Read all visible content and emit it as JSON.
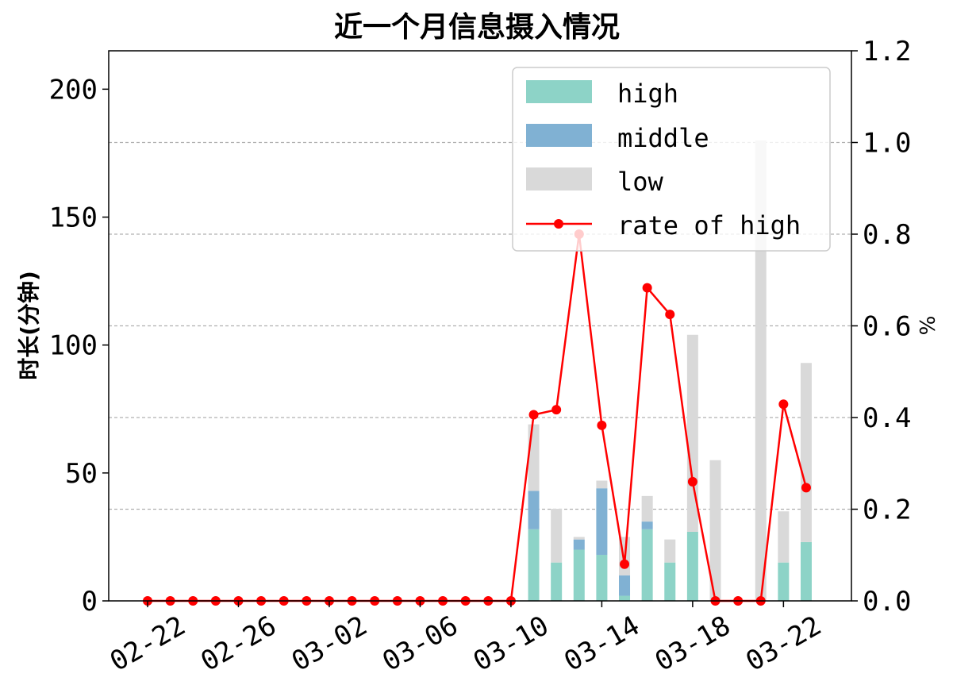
{
  "chart_data": {
    "type": "bar",
    "title": "近一个月信息摄入情况",
    "ylabel": "时长(分钟)",
    "ylabel_right": "%",
    "ylim": [
      0,
      215
    ],
    "ylim_right": [
      0,
      1.2
    ],
    "yticks": [
      0,
      50,
      100,
      150,
      200
    ],
    "yticks_right": [
      "0.0",
      "0.2",
      "0.4",
      "0.6",
      "0.8",
      "1.0",
      "1.2"
    ],
    "grid": "horizontal dashed at right-axis ticks",
    "legend_position": "top-right",
    "stacked": true,
    "categories": [
      "02-22",
      "02-23",
      "02-24",
      "02-25",
      "02-26",
      "02-27",
      "02-28",
      "03-01",
      "03-02",
      "03-03",
      "03-04",
      "03-05",
      "03-06",
      "03-07",
      "03-08",
      "03-09",
      "03-10",
      "03-11",
      "03-12",
      "03-13",
      "03-14",
      "03-15",
      "03-16",
      "03-17",
      "03-18",
      "03-19",
      "03-20",
      "03-21",
      "03-22",
      "03-23"
    ],
    "xtick_labels": [
      "02-22",
      "02-26",
      "03-02",
      "03-06",
      "03-10",
      "03-14",
      "03-18",
      "03-22"
    ],
    "xtick_every": 4,
    "series": [
      {
        "name": "high",
        "color": "#8dd3c7",
        "values": [
          0,
          0,
          0,
          0,
          0,
          0,
          0,
          0,
          0,
          0,
          0,
          0,
          0,
          0,
          0,
          0,
          0,
          28,
          15,
          20,
          18,
          2,
          28,
          15,
          27,
          0,
          0,
          0,
          15,
          23
        ]
      },
      {
        "name": "middle",
        "color": "#80b1d3",
        "values": [
          0,
          0,
          0,
          0,
          0,
          0,
          0,
          0,
          0,
          0,
          0,
          0,
          0,
          0,
          0,
          0,
          0,
          15,
          0,
          4,
          26,
          8,
          3,
          0,
          0,
          0,
          0,
          0,
          0,
          0
        ]
      },
      {
        "name": "low",
        "color": "#d9d9d9",
        "values": [
          0,
          0,
          0,
          0,
          0,
          0,
          0,
          0,
          0,
          0,
          0,
          0,
          0,
          0,
          0,
          0,
          0,
          26,
          21,
          1,
          3,
          15,
          10,
          9,
          77,
          55,
          0,
          180,
          20,
          70
        ]
      }
    ],
    "line_series": {
      "name": "rate of high",
      "color": "#ff0000",
      "axis": "right",
      "values": [
        0,
        0,
        0,
        0,
        0,
        0,
        0,
        0,
        0,
        0,
        0,
        0,
        0,
        0,
        0,
        0,
        0,
        0.406,
        0.417,
        0.8,
        0.383,
        0.08,
        0.683,
        0.625,
        0.26,
        0,
        0,
        0,
        0.429,
        0.247
      ]
    }
  }
}
